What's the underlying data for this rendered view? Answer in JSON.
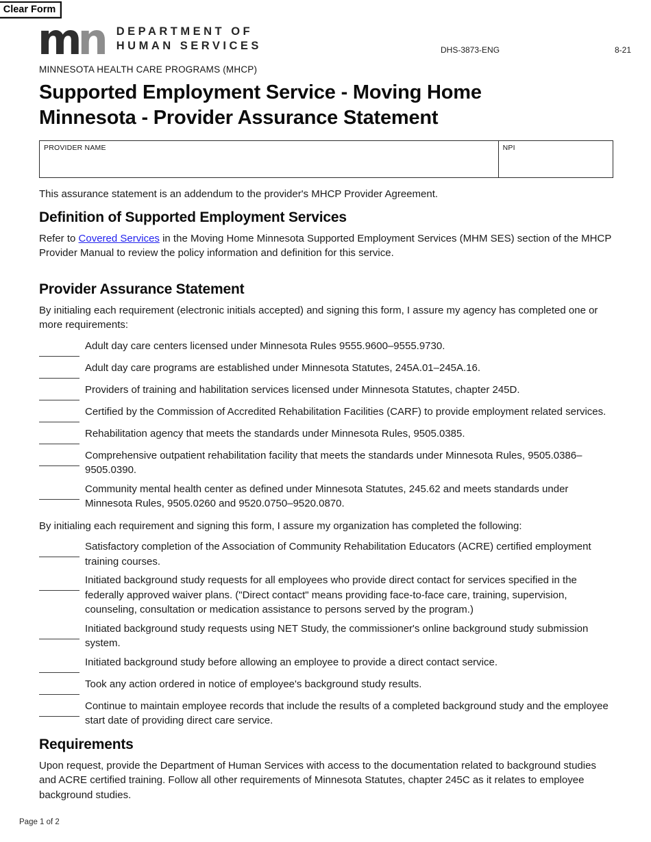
{
  "page": {
    "clear_form_label": "Clear Form",
    "form_number": "DHS-3873-ENG",
    "revision_date": "8-21",
    "footer": "Page 1 of 2"
  },
  "logo": {
    "m": "m",
    "n": "n",
    "dept_line1": "DEPARTMENT OF",
    "dept_line2": "HUMAN SERVICES",
    "m_color": "#2d2d2d",
    "n_color": "#8d8d8d"
  },
  "header": {
    "program": "MINNESOTA HEALTH CARE PROGRAMS (MHCP)",
    "title": "Supported Employment Service - Moving Home Minnesota - Provider Assurance Statement"
  },
  "provider_table": {
    "provider_name_label": "PROVIDER NAME",
    "provider_name_value": "",
    "npi_label": "NPI",
    "npi_value": ""
  },
  "intro": "This assurance statement is an addendum to the provider's MHCP Provider Agreement.",
  "definition_section": {
    "heading": "Definition of Supported Employment Services",
    "text_before_link": "Refer to ",
    "link_text": "Covered Services",
    "text_after_link": " in the Moving Home Minnesota Supported Employment Services (MHM SES) section of the MHCP Provider Manual to review the policy information and definition for this service.",
    "link_color": "#2222ee"
  },
  "assurance_section": {
    "heading": "Provider Assurance Statement",
    "agency_intro": "By initialing each requirement (electronic initials accepted) and signing this form, I assure my agency has completed one or more requirements:",
    "agency_items": [
      "Adult day care centers licensed under Minnesota Rules 9555.9600–9555.9730.",
      "Adult day care programs are established under Minnesota Statutes, 245A.01–245A.16.",
      "Providers of training and habilitation services licensed under Minnesota Statutes, chapter 245D.",
      "Certified by the Commission of Accredited Rehabilitation Facilities (CARF) to provide employment related services.",
      "Rehabilitation agency that meets the standards under Minnesota Rules, 9505.0385.",
      "Comprehensive outpatient rehabilitation facility that meets the standards under Minnesota Rules, 9505.0386–9505.0390.",
      "Community mental health center as defined under Minnesota Statutes, 245.62 and meets standards under Minnesota Rules, 9505.0260 and 9520.0750–9520.0870."
    ],
    "organization_intro": "By initialing each requirement and signing this form, I assure my organization has completed the following:",
    "organization_items": [
      "Satisfactory completion of the Association of Community Rehabilitation Educators (ACRE) certified employment training courses.",
      "Initiated background study requests for all employees who provide direct contact for services specified in the federally approved waiver plans. (\"Direct contact\" means providing face-to-face care, training, supervision, counseling, consultation or medication assistance to persons served by the program.)",
      "Initiated background study requests using NET Study, the commissioner's online background study submission system.",
      "Initiated background study before allowing an employee to provide a direct contact service.",
      "Took any action ordered in notice of employee's background study results.",
      "Continue to maintain employee records that include the results of a completed background study and the employee start date of providing direct care service."
    ]
  },
  "requirements_section": {
    "heading": "Requirements",
    "text": "Upon request, provide the Department of Human Services with access to the documentation related to background studies and ACRE certified training. Follow all other requirements of Minnesota Statutes, chapter 245C as it relates to employee background studies."
  }
}
